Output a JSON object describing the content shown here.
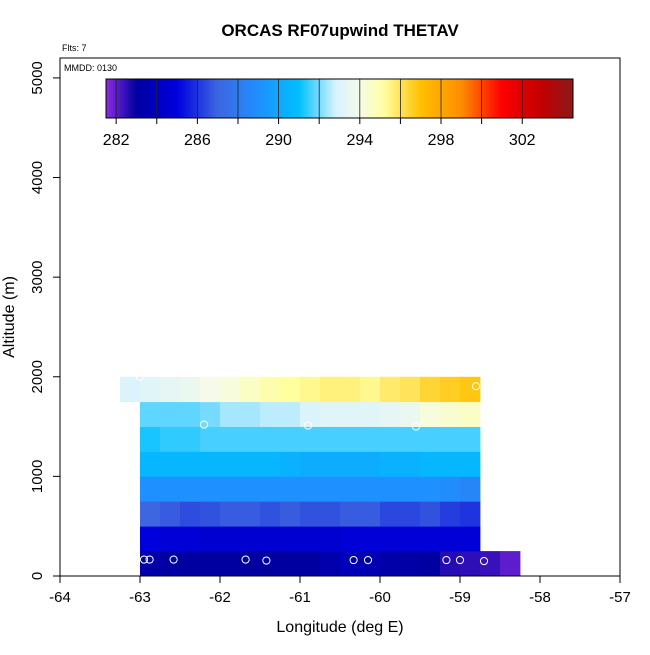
{
  "chart_data": {
    "type": "heatmap",
    "title": "ORCAS RF07upwind THETAV",
    "annotations": {
      "flights": "Flts: 7",
      "date": "MMDD: 0130"
    },
    "xlabel": "Longitude (deg E)",
    "ylabel": "Altitude (m)",
    "xlim": [
      -64,
      -57
    ],
    "ylim": [
      0,
      5200
    ],
    "x_ticks": [
      -64,
      -63,
      -62,
      -61,
      -60,
      -59,
      -58,
      -57
    ],
    "x_tick_labels": [
      "-64",
      "-63",
      "-62",
      "-61",
      "-60",
      "-59",
      "-58",
      "-57"
    ],
    "y_ticks": [
      0,
      1000,
      2000,
      3000,
      4000,
      5000
    ],
    "y_tick_labels": [
      "0",
      "1000",
      "2000",
      "3000",
      "4000",
      "5000"
    ],
    "colorbar": {
      "range": [
        281.5,
        304.5
      ],
      "tick_values": [
        282,
        286,
        290,
        294,
        298,
        302
      ],
      "tick_labels": [
        "282",
        "286",
        "290",
        "294",
        "298",
        "302"
      ],
      "segment_edges": [
        282,
        284,
        286,
        288,
        290,
        292,
        294,
        296,
        298,
        300,
        302
      ],
      "stops": [
        {
          "v": 281.5,
          "color": "#8b2be2"
        },
        {
          "v": 283.0,
          "color": "#0000a0"
        },
        {
          "v": 285.0,
          "color": "#0000dd"
        },
        {
          "v": 287.0,
          "color": "#3d66e0"
        },
        {
          "v": 289.0,
          "color": "#1e90ff"
        },
        {
          "v": 291.0,
          "color": "#00bfff"
        },
        {
          "v": 292.8,
          "color": "#d6f2ff"
        },
        {
          "v": 294.0,
          "color": "#f5fbe8"
        },
        {
          "v": 295.2,
          "color": "#ffffa0"
        },
        {
          "v": 297.0,
          "color": "#ffc000"
        },
        {
          "v": 299.0,
          "color": "#ff8c00"
        },
        {
          "v": 301.0,
          "color": "#ff0000"
        },
        {
          "v": 303.0,
          "color": "#c00000"
        },
        {
          "v": 304.5,
          "color": "#8b1a1a"
        }
      ]
    },
    "lon_edges": [
      -63.25,
      -63.0,
      -62.75,
      -62.5,
      -62.25,
      -62.0,
      -61.75,
      -61.5,
      -61.25,
      -61.0,
      -60.75,
      -60.5,
      -60.25,
      -60.0,
      -59.75,
      -59.5,
      -59.25,
      -59.0,
      -58.75,
      -58.5
    ],
    "layers": [
      {
        "y0": 0,
        "y1": 250,
        "lon_start": -63.0,
        "values": [
          283.2,
          283.1,
          283.0,
          283.0,
          283.0,
          283.0,
          283.0,
          283.0,
          283.0,
          283.4,
          283.8,
          283.6,
          283.3,
          283.2,
          283.0,
          282.6,
          282.5,
          282.4,
          282.0
        ]
      },
      {
        "y0": 250,
        "y1": 500,
        "lon_start": -63.0,
        "values": [
          285.0,
          284.8,
          284.8,
          284.6,
          284.6,
          284.6,
          284.6,
          284.6,
          284.6,
          284.6,
          284.8,
          284.8,
          284.8,
          284.8,
          284.8,
          284.8,
          284.8
        ]
      },
      {
        "y0": 500,
        "y1": 750,
        "lon_start": -63.0,
        "values": [
          287.0,
          286.8,
          286.5,
          286.6,
          286.8,
          286.8,
          286.6,
          286.8,
          286.6,
          286.6,
          286.8,
          286.8,
          286.4,
          286.4,
          286.6,
          286.2,
          286.0
        ]
      },
      {
        "y0": 750,
        "y1": 1000,
        "lon_start": -63.0,
        "values": [
          289.0,
          289.0,
          289.0,
          289.0,
          289.0,
          289.0,
          289.0,
          289.0,
          289.0,
          289.0,
          289.0,
          289.0,
          289.0,
          289.0,
          289.0,
          288.8,
          288.5
        ]
      },
      {
        "y0": 1000,
        "y1": 1250,
        "lon_start": -63.0,
        "values": [
          290.6,
          290.6,
          290.6,
          290.6,
          290.6,
          290.6,
          290.6,
          290.4,
          290.2,
          290.2,
          290.2,
          290.2,
          290.4,
          290.4,
          290.6,
          290.6,
          290.6
        ]
      },
      {
        "y0": 1250,
        "y1": 1500,
        "lon_start": -63.0,
        "values": [
          291.2,
          291.4,
          291.4,
          291.6,
          291.6,
          291.6,
          291.6,
          291.6,
          291.6,
          291.6,
          291.6,
          291.6,
          291.6,
          291.6,
          291.6,
          291.6,
          291.6
        ]
      },
      {
        "y0": 1500,
        "y1": 1750,
        "lon_start": -63.0,
        "values": [
          291.8,
          291.8,
          291.8,
          292.0,
          292.4,
          292.4,
          292.6,
          292.6,
          293.0,
          293.2,
          293.2,
          293.2,
          293.4,
          293.6,
          294.2,
          294.4,
          294.6
        ]
      },
      {
        "y0": 1750,
        "y1": 2000,
        "lon_start": -63.25,
        "values": [
          293.0,
          293.2,
          293.4,
          293.6,
          294.0,
          294.2,
          294.6,
          295.0,
          295.2,
          295.4,
          295.6,
          295.6,
          295.4,
          295.8,
          296.0,
          296.4,
          296.6,
          296.8
        ]
      }
    ],
    "flight_points": [
      {
        "lon": -63.0,
        "alt": 2000
      },
      {
        "lon": -62.2,
        "alt": 1520
      },
      {
        "lon": -60.9,
        "alt": 1510
      },
      {
        "lon": -59.55,
        "alt": 1500
      },
      {
        "lon": -58.8,
        "alt": 1905
      },
      {
        "lon": -62.95,
        "alt": 165
      },
      {
        "lon": -62.88,
        "alt": 165
      },
      {
        "lon": -62.58,
        "alt": 165
      },
      {
        "lon": -61.68,
        "alt": 165
      },
      {
        "lon": -61.42,
        "alt": 155
      },
      {
        "lon": -60.33,
        "alt": 160
      },
      {
        "lon": -60.15,
        "alt": 160
      },
      {
        "lon": -59.17,
        "alt": 160
      },
      {
        "lon": -59.0,
        "alt": 160
      },
      {
        "lon": -58.7,
        "alt": 150
      }
    ]
  }
}
